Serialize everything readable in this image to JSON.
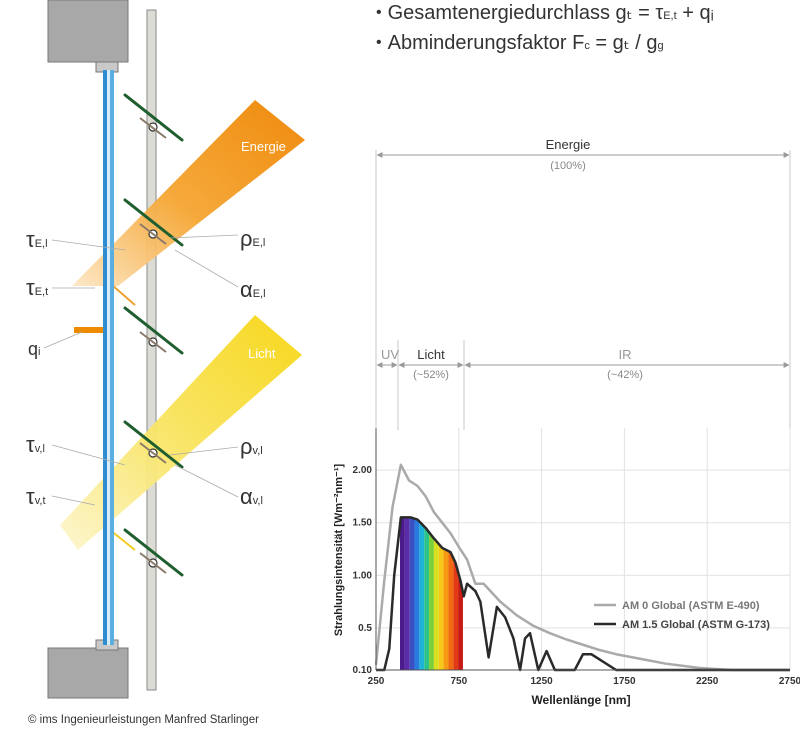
{
  "formulas": [
    {
      "text": "Gesamtenergiedurchlass gₜ = τ",
      "sub": "E,t",
      "tail": " + qᵢ"
    },
    {
      "text": "Abminderungsfaktor F",
      "sub": "c",
      "tail": " = gₜ  / g",
      "sub2": "g"
    }
  ],
  "left_diagram": {
    "beam_energy_label": "Energie",
    "beam_light_label": "Licht",
    "symbols": [
      {
        "base": "τ",
        "sub": "E,l"
      },
      {
        "base": "τ",
        "sub": "E,t"
      },
      {
        "base": "q",
        "sub": "i"
      },
      {
        "base": "τ",
        "sub": "v,l"
      },
      {
        "base": "τ",
        "sub": "v,t"
      },
      {
        "base": "ρ",
        "sub": "E,l"
      },
      {
        "base": "α",
        "sub": "E,l"
      },
      {
        "base": "ρ",
        "sub": "v,l"
      },
      {
        "base": "α",
        "sub": "v,l"
      }
    ],
    "colors": {
      "energy": "#f08a00",
      "light": "#f7d715",
      "glass": "#3a9ad6",
      "slat": "#1f5e2e",
      "frame": "#9a9a9a"
    }
  },
  "ranges": {
    "energy": {
      "label": "Energie",
      "pct": "(100%)"
    },
    "uv": {
      "label": "UV"
    },
    "licht": {
      "label": "Licht",
      "pct": "(~52%)"
    },
    "ir": {
      "label": "IR",
      "pct": "(~42%)"
    }
  },
  "credit": "© ims Ingenieurleistungen Manfred Starlinger",
  "chart_data": {
    "type": "line",
    "xlabel": "Wellenlänge [nm]",
    "ylabel": "Strahlungsintensität [Wm⁻²nm⁻¹]",
    "xlim": [
      250,
      2750
    ],
    "ylim": [
      0.1,
      2.4
    ],
    "xticks": [
      "250",
      "750",
      "1250",
      "1750",
      "2250",
      "2750"
    ],
    "yticks": [
      "0.10",
      "0.5",
      "1.00",
      "1.50",
      "2.00"
    ],
    "series": [
      {
        "name": "AM 0 Global (ASTM E-490)",
        "color": "#aaaaaa",
        "x": [
          250,
          300,
          350,
          400,
          450,
          500,
          550,
          600,
          650,
          700,
          750,
          800,
          850,
          900,
          1000,
          1100,
          1200,
          1300,
          1400,
          1500,
          1600,
          1700,
          1800,
          1900,
          2000,
          2100,
          2200,
          2300,
          2400,
          2500,
          2600,
          2700,
          2750
        ],
        "y": [
          0.15,
          0.95,
          1.65,
          2.05,
          1.9,
          1.85,
          1.75,
          1.6,
          1.5,
          1.4,
          1.27,
          1.15,
          0.92,
          0.92,
          0.75,
          0.62,
          0.52,
          0.45,
          0.39,
          0.34,
          0.29,
          0.25,
          0.22,
          0.19,
          0.16,
          0.14,
          0.12,
          0.11,
          0.1,
          0.09,
          0.08,
          0.07,
          0.07
        ]
      },
      {
        "name": "AM 1.5 Global (ASTM G-173)",
        "color": "#2a2a2a",
        "x": [
          250,
          300,
          330,
          360,
          400,
          430,
          460,
          500,
          550,
          600,
          650,
          700,
          730,
          760,
          780,
          800,
          850,
          880,
          930,
          980,
          1030,
          1080,
          1120,
          1150,
          1180,
          1230,
          1280,
          1330,
          1380,
          1400,
          1450,
          1500,
          1550,
          1600,
          1700,
          1750,
          1800,
          1850,
          1900,
          1950,
          2000,
          2100,
          2200,
          2300,
          2400,
          2500,
          2600,
          2750
        ],
        "y": [
          0.1,
          0.1,
          0.3,
          1.0,
          1.55,
          1.55,
          1.55,
          1.53,
          1.45,
          1.35,
          1.26,
          1.22,
          1.12,
          0.95,
          0.8,
          0.92,
          0.85,
          0.75,
          0.22,
          0.7,
          0.6,
          0.4,
          0.08,
          0.4,
          0.45,
          0.1,
          0.28,
          0.02,
          0.0,
          0.0,
          0.1,
          0.25,
          0.25,
          0.2,
          0.1,
          0.0,
          0.0,
          0.0,
          0.0,
          0.02,
          0.05,
          0.08,
          0.07,
          0.05,
          0.03,
          0.0,
          0.0,
          0.0
        ]
      }
    ],
    "legend": "bottom-right"
  }
}
